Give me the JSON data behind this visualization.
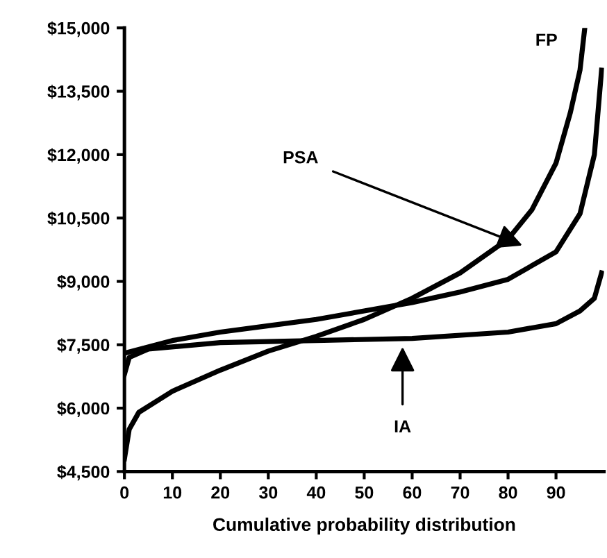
{
  "chart_data": {
    "type": "line",
    "xlabel": "Cumulative probability distribution",
    "xlim": [
      0,
      100
    ],
    "xticks": [
      0,
      10,
      20,
      30,
      40,
      50,
      60,
      70,
      80,
      90
    ],
    "ylim": [
      4500,
      15000
    ],
    "yticks": [
      {
        "value": 4500,
        "label": "$4,500"
      },
      {
        "value": 6000,
        "label": "$6,000"
      },
      {
        "value": 7500,
        "label": "$7,500"
      },
      {
        "value": 9000,
        "label": "$9,000"
      },
      {
        "value": 10500,
        "label": "$10,500"
      },
      {
        "value": 12000,
        "label": "$12,000"
      },
      {
        "value": 13500,
        "label": "$13,500"
      },
      {
        "value": 15000,
        "label": "$15,000"
      }
    ],
    "grid": false,
    "legend": false,
    "marker": "none",
    "line_style": "solid",
    "series": [
      {
        "color": "#000000",
        "x": [
          0,
          1,
          3,
          10,
          20,
          30,
          40,
          50,
          60,
          70,
          80,
          85,
          90,
          93,
          95,
          96
        ],
        "values": [
          4800,
          5500,
          5900,
          6400,
          6900,
          7350,
          7700,
          8100,
          8600,
          9200,
          10000,
          10700,
          11800,
          13000,
          14000,
          15000
        ]
      },
      {
        "color": "#000000",
        "x": [
          0,
          10,
          20,
          30,
          40,
          50,
          60,
          70,
          80,
          90,
          95,
          98,
          99.5
        ],
        "values": [
          7300,
          7600,
          7800,
          7950,
          8100,
          8300,
          8500,
          8750,
          9050,
          9700,
          10600,
          12000,
          14000
        ]
      },
      {
        "color": "#000000",
        "x": [
          0,
          1,
          5,
          20,
          40,
          60,
          80,
          90,
          95,
          98,
          99.5
        ],
        "values": [
          6800,
          7200,
          7400,
          7550,
          7600,
          7650,
          7800,
          8000,
          8300,
          8600,
          9200
        ]
      }
    ],
    "annotations": [
      "FP",
      {
        "text": "PSA",
        "x": 83,
        "y": 9850
      },
      {
        "text": "IA",
        "x": 58,
        "y": 7450
      }
    ]
  }
}
